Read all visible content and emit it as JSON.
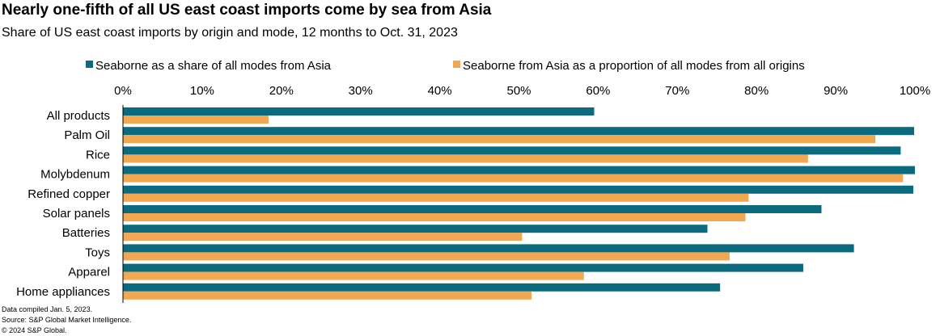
{
  "chart_data": {
    "type": "bar",
    "orientation": "horizontal",
    "title": "Nearly one-fifth of all US east coast imports come by sea from Asia",
    "subtitle": "Share of US east coast imports by origin and mode, 12 months to Oct. 31, 2023",
    "categories": [
      "All products",
      "Palm Oil",
      "Rice",
      "Molybdenum",
      "Refined copper",
      "Solar panels",
      "Batteries",
      "Toys",
      "Apparel",
      "Home appliances"
    ],
    "series": [
      {
        "name": "Seaborne as a share of all modes from Asia",
        "color": "#0b6a7d",
        "values": [
          59.5,
          99.9,
          98.2,
          100,
          99.8,
          88.2,
          73.8,
          92.3,
          85.9,
          75.4
        ]
      },
      {
        "name": "Seaborne from Asia as a proportion of all modes from all origins",
        "color": "#f2a750",
        "values": [
          18.4,
          95.0,
          86.5,
          98.5,
          79.0,
          78.6,
          50.4,
          76.6,
          58.2,
          51.6
        ]
      }
    ],
    "xlim": [
      0,
      100
    ],
    "x_ticks": [
      "0%",
      "10%",
      "20%",
      "30%",
      "40%",
      "50%",
      "60%",
      "70%",
      "80%",
      "90%",
      "100%"
    ],
    "legend_position": "top",
    "grid": false
  },
  "footnotes": [
    "Data compiled Jan. 5, 2023.",
    "Source: S&P Global Market Intelligence.",
    "© 2024 S&P Global."
  ]
}
